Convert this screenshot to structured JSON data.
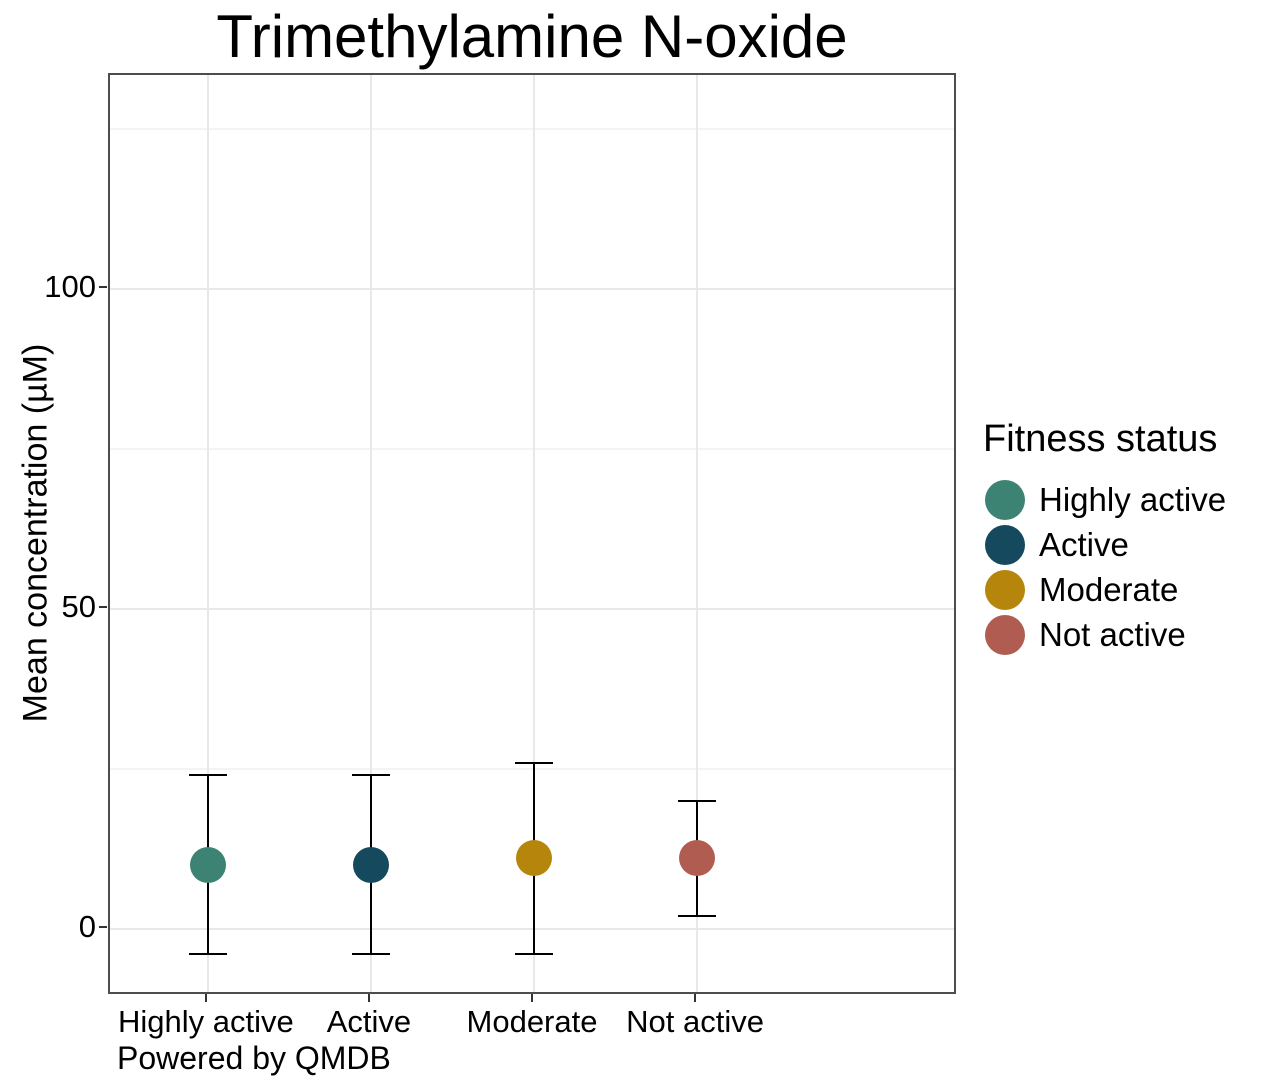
{
  "caption": "Powered by QMDB",
  "chart_data": {
    "type": "scatter",
    "title": "Trimethylamine N-oxide",
    "ylabel": "Mean concentration (µM)",
    "xlabel": "",
    "categories": [
      "Highly active",
      "Active",
      "Moderate",
      "Not active"
    ],
    "series": [
      {
        "name": "Highly active",
        "mean": 10,
        "lower": -4,
        "upper": 24,
        "color": "#3c8374"
      },
      {
        "name": "Active",
        "mean": 10,
        "lower": -4,
        "upper": 24,
        "color": "#14495e"
      },
      {
        "name": "Moderate",
        "mean": 11,
        "lower": -4,
        "upper": 26,
        "color": "#b5860b"
      },
      {
        "name": "Not active",
        "mean": 11,
        "lower": 2,
        "upper": 20,
        "color": "#b05c51"
      }
    ],
    "ylim": [
      -10.5,
      133.5
    ],
    "yticks": [
      0,
      50,
      100
    ],
    "yticks_minor": [
      25,
      75,
      125
    ],
    "grid": true,
    "errorbar_color": "#000000",
    "legend": {
      "title": "Fitness status",
      "position": "right"
    }
  }
}
